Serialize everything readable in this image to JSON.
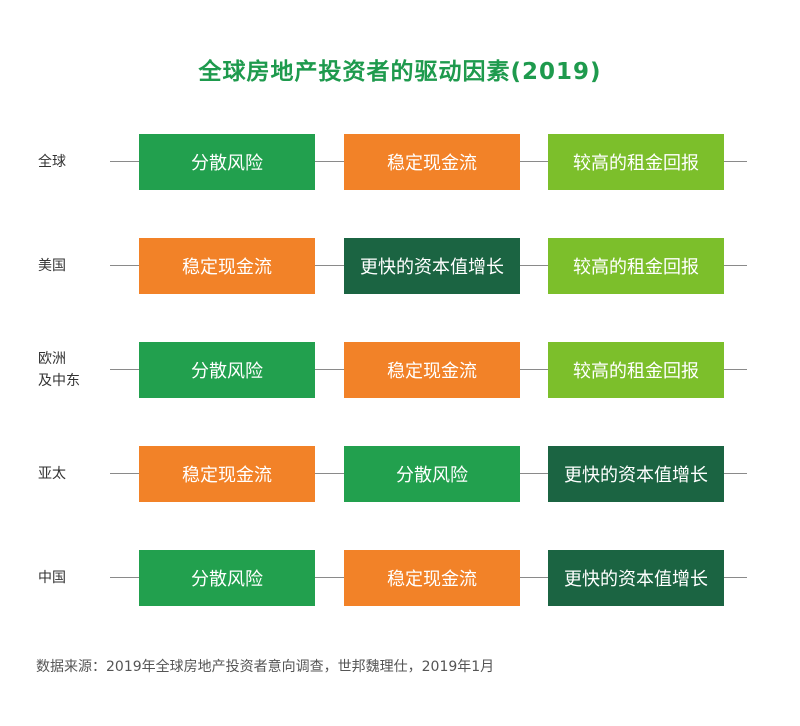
{
  "title": "全球房地产投资者的驱动因素(2019)",
  "colors": {
    "title": "#1e9a4d",
    "分散风险": "#22a04e",
    "稳定现金流": "#f28228",
    "较高的租金回报": "#7cbf2b",
    "更快的资本值增长": "#1b6442"
  },
  "rows": [
    {
      "region": "全球",
      "items": [
        "分散风险",
        "稳定现金流",
        "较高的租金回报"
      ]
    },
    {
      "region": "美国",
      "items": [
        "稳定现金流",
        "更快的资本值增长",
        "较高的租金回报"
      ]
    },
    {
      "region": "欧洲\n及中东",
      "items": [
        "分散风险",
        "稳定现金流",
        "较高的租金回报"
      ]
    },
    {
      "region": "亚太",
      "items": [
        "稳定现金流",
        "分散风险",
        "更快的资本值增长"
      ]
    },
    {
      "region": "中国",
      "items": [
        "分散风险",
        "稳定现金流",
        "更快的资本值增长"
      ]
    }
  ],
  "source": "数据来源：2019年全球房地产投资者意向调查，世邦魏理仕，2019年1月"
}
